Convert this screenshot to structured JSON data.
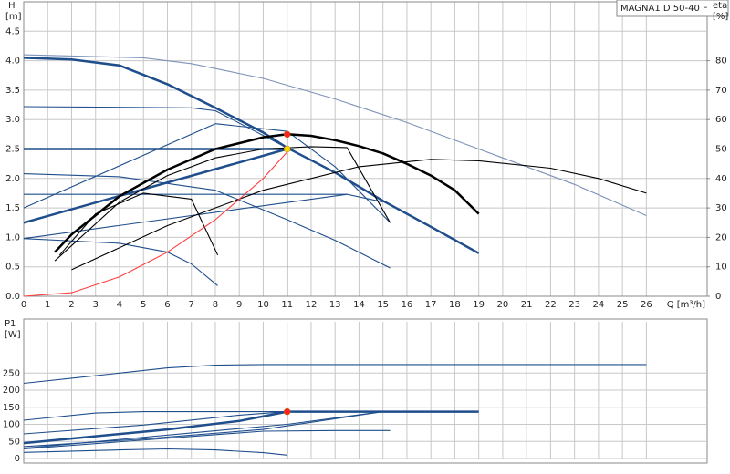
{
  "chart_data": [
    {
      "type": "line",
      "title": "MAGNA1 D 50-40 F",
      "ylabel": "H",
      "yunit": "[m]",
      "y2label": "eta",
      "y2unit": "[%]",
      "xlabel": "Q [m³/h]",
      "xlim": [
        0,
        28.5
      ],
      "xticks": [
        0,
        1,
        2,
        3,
        4,
        5,
        6,
        7,
        8,
        9,
        10,
        11,
        12,
        13,
        14,
        15,
        16,
        17,
        18,
        19,
        20,
        21,
        22,
        23,
        24,
        25,
        26
      ],
      "ylim": [
        0,
        5
      ],
      "yticks": [
        {
          "value": 0,
          "label": "0.0"
        },
        0.5,
        {
          "value": 1,
          "label": "1.0"
        },
        1.5,
        {
          "value": 2,
          "label": "2.0"
        },
        2.5,
        {
          "value": 3,
          "label": "3.0"
        },
        3.5,
        {
          "value": 4,
          "label": "4.0"
        },
        4.5
      ],
      "y2lim": [
        0,
        100
      ],
      "y2ticks": [
        0,
        10,
        20,
        30,
        40,
        50,
        60,
        70,
        80
      ],
      "grid": true,
      "series": [
        {
          "color": "#7d93b8",
          "x": [
            0,
            5,
            7,
            10,
            13,
            16,
            20,
            23,
            26
          ],
          "values": [
            4.1,
            4.05,
            3.95,
            3.7,
            3.35,
            2.95,
            2.35,
            1.9,
            1.37
          ]
        },
        {
          "color": "#1f4e8c",
          "bold": true,
          "x": [
            0,
            2,
            4,
            6,
            8,
            10,
            11,
            13,
            15,
            17,
            19
          ],
          "values": [
            4.05,
            4.02,
            3.92,
            3.6,
            3.2,
            2.78,
            2.52,
            2.1,
            1.62,
            1.18,
            0.73
          ]
        },
        {
          "color": "#1f4e8c",
          "x": [
            0,
            7,
            8,
            11
          ],
          "values": [
            3.22,
            3.2,
            3.15,
            2.52
          ]
        },
        {
          "color": "#1f4e8c",
          "bold": true,
          "x": [
            0,
            11
          ],
          "values": [
            2.5,
            2.5
          ]
        },
        {
          "color": "#1f4e8c",
          "x": [
            0,
            8,
            11,
            13,
            15.3
          ],
          "values": [
            1.5,
            2.93,
            2.8,
            2.2,
            1.25
          ]
        },
        {
          "color": "#1f4e8c",
          "bold": true,
          "x": [
            0,
            11
          ],
          "values": [
            1.25,
            2.5
          ]
        },
        {
          "color": "#1f4e8c",
          "x": [
            0,
            13.5,
            15
          ],
          "values": [
            1.73,
            1.73,
            1.6
          ]
        },
        {
          "color": "#1f4e8c",
          "x": [
            0,
            13.5
          ],
          "values": [
            0.98,
            1.73
          ]
        },
        {
          "color": "#1f4e8c",
          "x": [
            0,
            4,
            8,
            11,
            13,
            15.3
          ],
          "values": [
            2.08,
            2.03,
            1.8,
            1.3,
            0.95,
            0.48
          ]
        },
        {
          "color": "#1f4e8c",
          "x": [
            0,
            4,
            6,
            7,
            8.1
          ],
          "values": [
            0.98,
            0.9,
            0.75,
            0.55,
            0.18
          ]
        },
        {
          "color": "#000000",
          "bold": true,
          "axis": "y2",
          "x": [
            1.3,
            2,
            4,
            6,
            8,
            10,
            11,
            12,
            13,
            14,
            15,
            16,
            17,
            18,
            19
          ],
          "values": [
            15,
            21,
            34,
            43,
            50,
            54,
            55,
            54.5,
            53,
            51,
            48.5,
            45,
            41,
            36,
            28
          ]
        },
        {
          "color": "#000000",
          "axis": "y2",
          "x": [
            2,
            6,
            10,
            14,
            17,
            19,
            22,
            24,
            26
          ],
          "values": [
            9,
            24,
            36,
            44,
            46.5,
            46,
            43.5,
            40,
            35
          ]
        },
        {
          "color": "#000000",
          "axis": "y2",
          "x": [
            1.3,
            4,
            6,
            8,
            10,
            12,
            13.5,
            15.3
          ],
          "values": [
            12,
            32,
            41,
            47,
            50,
            50.8,
            50.5,
            25
          ]
        },
        {
          "color": "#000000",
          "axis": "y2",
          "x": [
            1.5,
            3,
            5,
            7,
            8.1
          ],
          "values": [
            14,
            28,
            35,
            33,
            14
          ]
        },
        {
          "color": "#ff4040",
          "x": [
            0,
            2,
            4,
            6,
            8,
            10,
            11
          ],
          "values": [
            0,
            0.06,
            0.33,
            0.75,
            1.3,
            2.0,
            2.45
          ]
        }
      ],
      "points": [
        {
          "x": 11,
          "y": 55,
          "axis": "y2",
          "color": "#ff2020"
        },
        {
          "x": 11,
          "y": 2.5,
          "color": "#ffd700"
        }
      ]
    },
    {
      "type": "line",
      "ylabel": "P1",
      "yunit": "[W]",
      "xlim": [
        0,
        28.5
      ],
      "ylim": [
        0,
        400
      ],
      "yticks": [
        0,
        50,
        100,
        150,
        200,
        250
      ],
      "grid": true,
      "series": [
        {
          "color": "#1f4e8c",
          "x": [
            0,
            2,
            4,
            6,
            8,
            10,
            26
          ],
          "values": [
            220,
            235,
            250,
            265,
            273,
            275,
            275
          ]
        },
        {
          "color": "#1f4e8c",
          "x": [
            0,
            3,
            5,
            11
          ],
          "values": [
            112,
            133,
            137,
            137
          ]
        },
        {
          "color": "#1f4e8c",
          "bold": true,
          "x": [
            11,
            19
          ],
          "values": [
            137,
            137
          ]
        },
        {
          "color": "#1f4e8c",
          "x": [
            0,
            5,
            9,
            11
          ],
          "values": [
            72,
            98,
            127,
            137
          ]
        },
        {
          "color": "#1f4e8c",
          "bold": true,
          "x": [
            0,
            6,
            9,
            11
          ],
          "values": [
            45,
            85,
            110,
            137
          ]
        },
        {
          "color": "#1f4e8c",
          "x": [
            0,
            5,
            10,
            15
          ],
          "values": [
            35,
            57,
            85,
            137
          ]
        },
        {
          "color": "#1f4e8c",
          "x": [
            0,
            10,
            13,
            15.3
          ],
          "values": [
            28,
            80,
            82,
            82
          ]
        },
        {
          "color": "#1f4e8c",
          "x": [
            0,
            7,
            11,
            15
          ],
          "values": [
            30,
            75,
            100,
            137
          ]
        },
        {
          "color": "#1f4e8c",
          "x": [
            0,
            4,
            6,
            8,
            10,
            11
          ],
          "values": [
            18,
            25,
            28,
            25,
            17,
            10
          ]
        }
      ],
      "points": [
        {
          "x": 11,
          "y": 137,
          "color": "#ff2020"
        }
      ]
    }
  ]
}
